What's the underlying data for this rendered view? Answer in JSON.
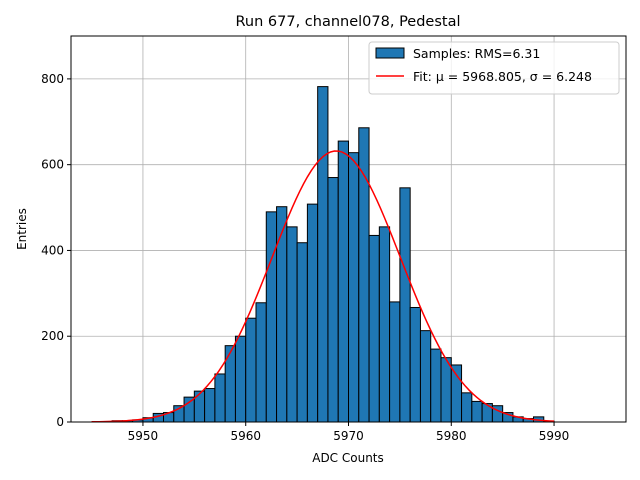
{
  "chart_data": {
    "type": "bar",
    "title": "Run 677, channel078, Pedestal",
    "xlabel": "ADC Counts",
    "ylabel": "Entries",
    "xlim": [
      5943,
      5997
    ],
    "ylim": [
      0,
      900
    ],
    "grid": true,
    "legend_position": "top-right",
    "x_ticks": [
      5950,
      5960,
      5970,
      5980,
      5990
    ],
    "y_ticks": [
      0,
      200,
      400,
      600,
      800
    ],
    "bin_edges_start": 5947,
    "bin_width": 1,
    "hist_values": [
      3,
      3,
      5,
      10,
      20,
      22,
      38,
      58,
      72,
      78,
      112,
      178,
      200,
      242,
      278,
      490,
      502,
      455,
      418,
      508,
      782,
      570,
      655,
      628,
      686,
      435,
      455,
      280,
      546,
      267,
      213,
      170,
      150,
      133,
      68,
      48,
      43,
      38,
      22,
      12,
      8,
      12,
      2
    ],
    "series": [
      {
        "name": "Samples: RMS=6.31",
        "kind": "histogram",
        "color": "#1f77b4"
      },
      {
        "name": "Fit: μ = 5968.805, σ = 6.248",
        "kind": "gaussian",
        "color": "#ff0000",
        "mu": 5968.805,
        "sigma": 6.248,
        "amplitude": 632,
        "x_range": [
          5945,
          5990
        ]
      }
    ]
  }
}
